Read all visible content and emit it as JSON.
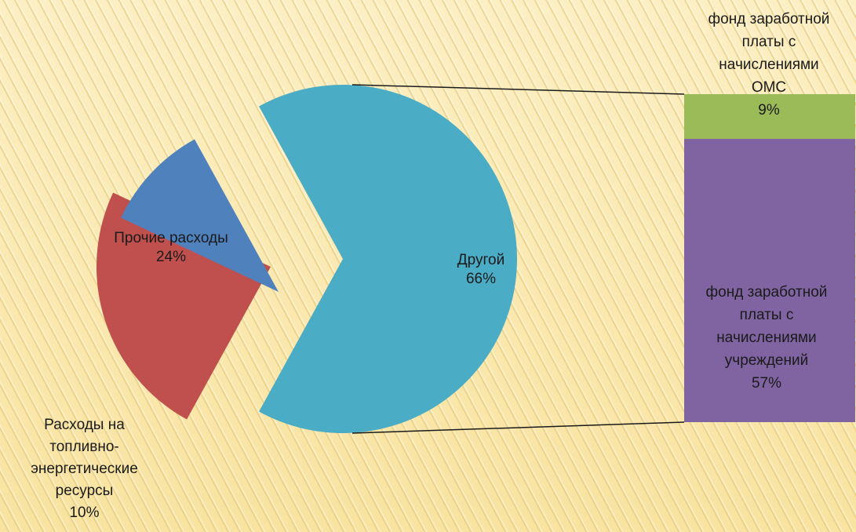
{
  "chart_data": {
    "type": "pie",
    "subtype": "bar-of-pie",
    "slices": [
      {
        "label": "Прочие расходы",
        "value": 24,
        "value_label": "24%",
        "color": "#c0504d"
      },
      {
        "label": "Расходы на топливно-энергетические ресурсы",
        "value": 10,
        "value_label": "10%",
        "color": "#4f81bd"
      },
      {
        "label": "Другой",
        "value": 66,
        "value_label": "66%",
        "color": "#4bacc6"
      }
    ],
    "breakdown": {
      "of": "Другой",
      "segments": [
        {
          "label": "фонд заработной платы с начислениями ОМС",
          "value": 9,
          "value_label": "9%",
          "color": "#9bbb59"
        },
        {
          "label": "фонд заработной платы с начислениями учреждений",
          "value": 57,
          "value_label": "57%",
          "color": "#8064a2"
        }
      ]
    },
    "connector_color": "#1a1a1a"
  },
  "labels": {
    "other": {
      "lines": [
        "Другой"
      ],
      "value": "66%"
    },
    "prochie": {
      "lines": [
        "Прочие расходы"
      ],
      "value": "24%"
    },
    "fuel": {
      "lines": [
        "Расходы на",
        "топливно-",
        "энергетические",
        "ресурсы"
      ],
      "value": "10%"
    },
    "oms": {
      "lines": [
        "фонд заработной",
        "платы с",
        "начислениями",
        "ОМС"
      ],
      "value": "9%"
    },
    "uchr": {
      "lines": [
        "фонд заработной",
        "платы с",
        "начислениями",
        "учреждений"
      ],
      "value": "57%"
    }
  }
}
